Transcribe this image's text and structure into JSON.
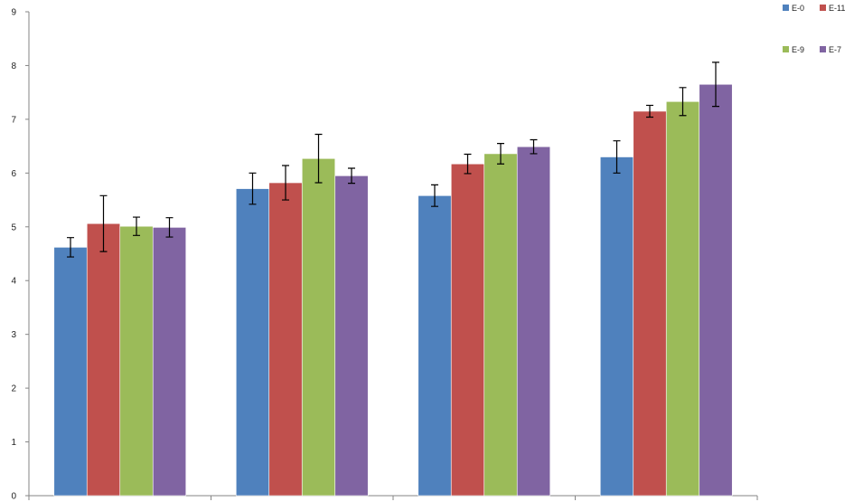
{
  "chart_data": {
    "type": "bar",
    "title": "",
    "xlabel": "",
    "ylabel": "",
    "ylim": [
      0,
      9
    ],
    "yticks": [
      "0",
      "1",
      "2",
      "3",
      "4",
      "5",
      "6",
      "7",
      "8",
      "9"
    ],
    "grid": false,
    "legend_position": "top-right",
    "categories": [
      "",
      "",
      "",
      ""
    ],
    "series": [
      {
        "name": "E-0",
        "color": "#4F81BD",
        "values": [
          4.62,
          5.71,
          5.58,
          6.3
        ],
        "errors": [
          0.18,
          0.29,
          0.2,
          0.3
        ]
      },
      {
        "name": "E-11",
        "color": "#C0504D",
        "values": [
          5.06,
          5.82,
          6.17,
          7.15
        ],
        "errors": [
          0.52,
          0.32,
          0.18,
          0.11
        ]
      },
      {
        "name": "E-9",
        "color": "#9BBB59",
        "values": [
          5.01,
          6.27,
          6.36,
          7.33
        ],
        "errors": [
          0.17,
          0.45,
          0.19,
          0.26
        ]
      },
      {
        "name": "E-7",
        "color": "#8064A2",
        "values": [
          4.99,
          5.95,
          6.49,
          7.65
        ],
        "errors": [
          0.18,
          0.14,
          0.13,
          0.41
        ]
      }
    ]
  }
}
